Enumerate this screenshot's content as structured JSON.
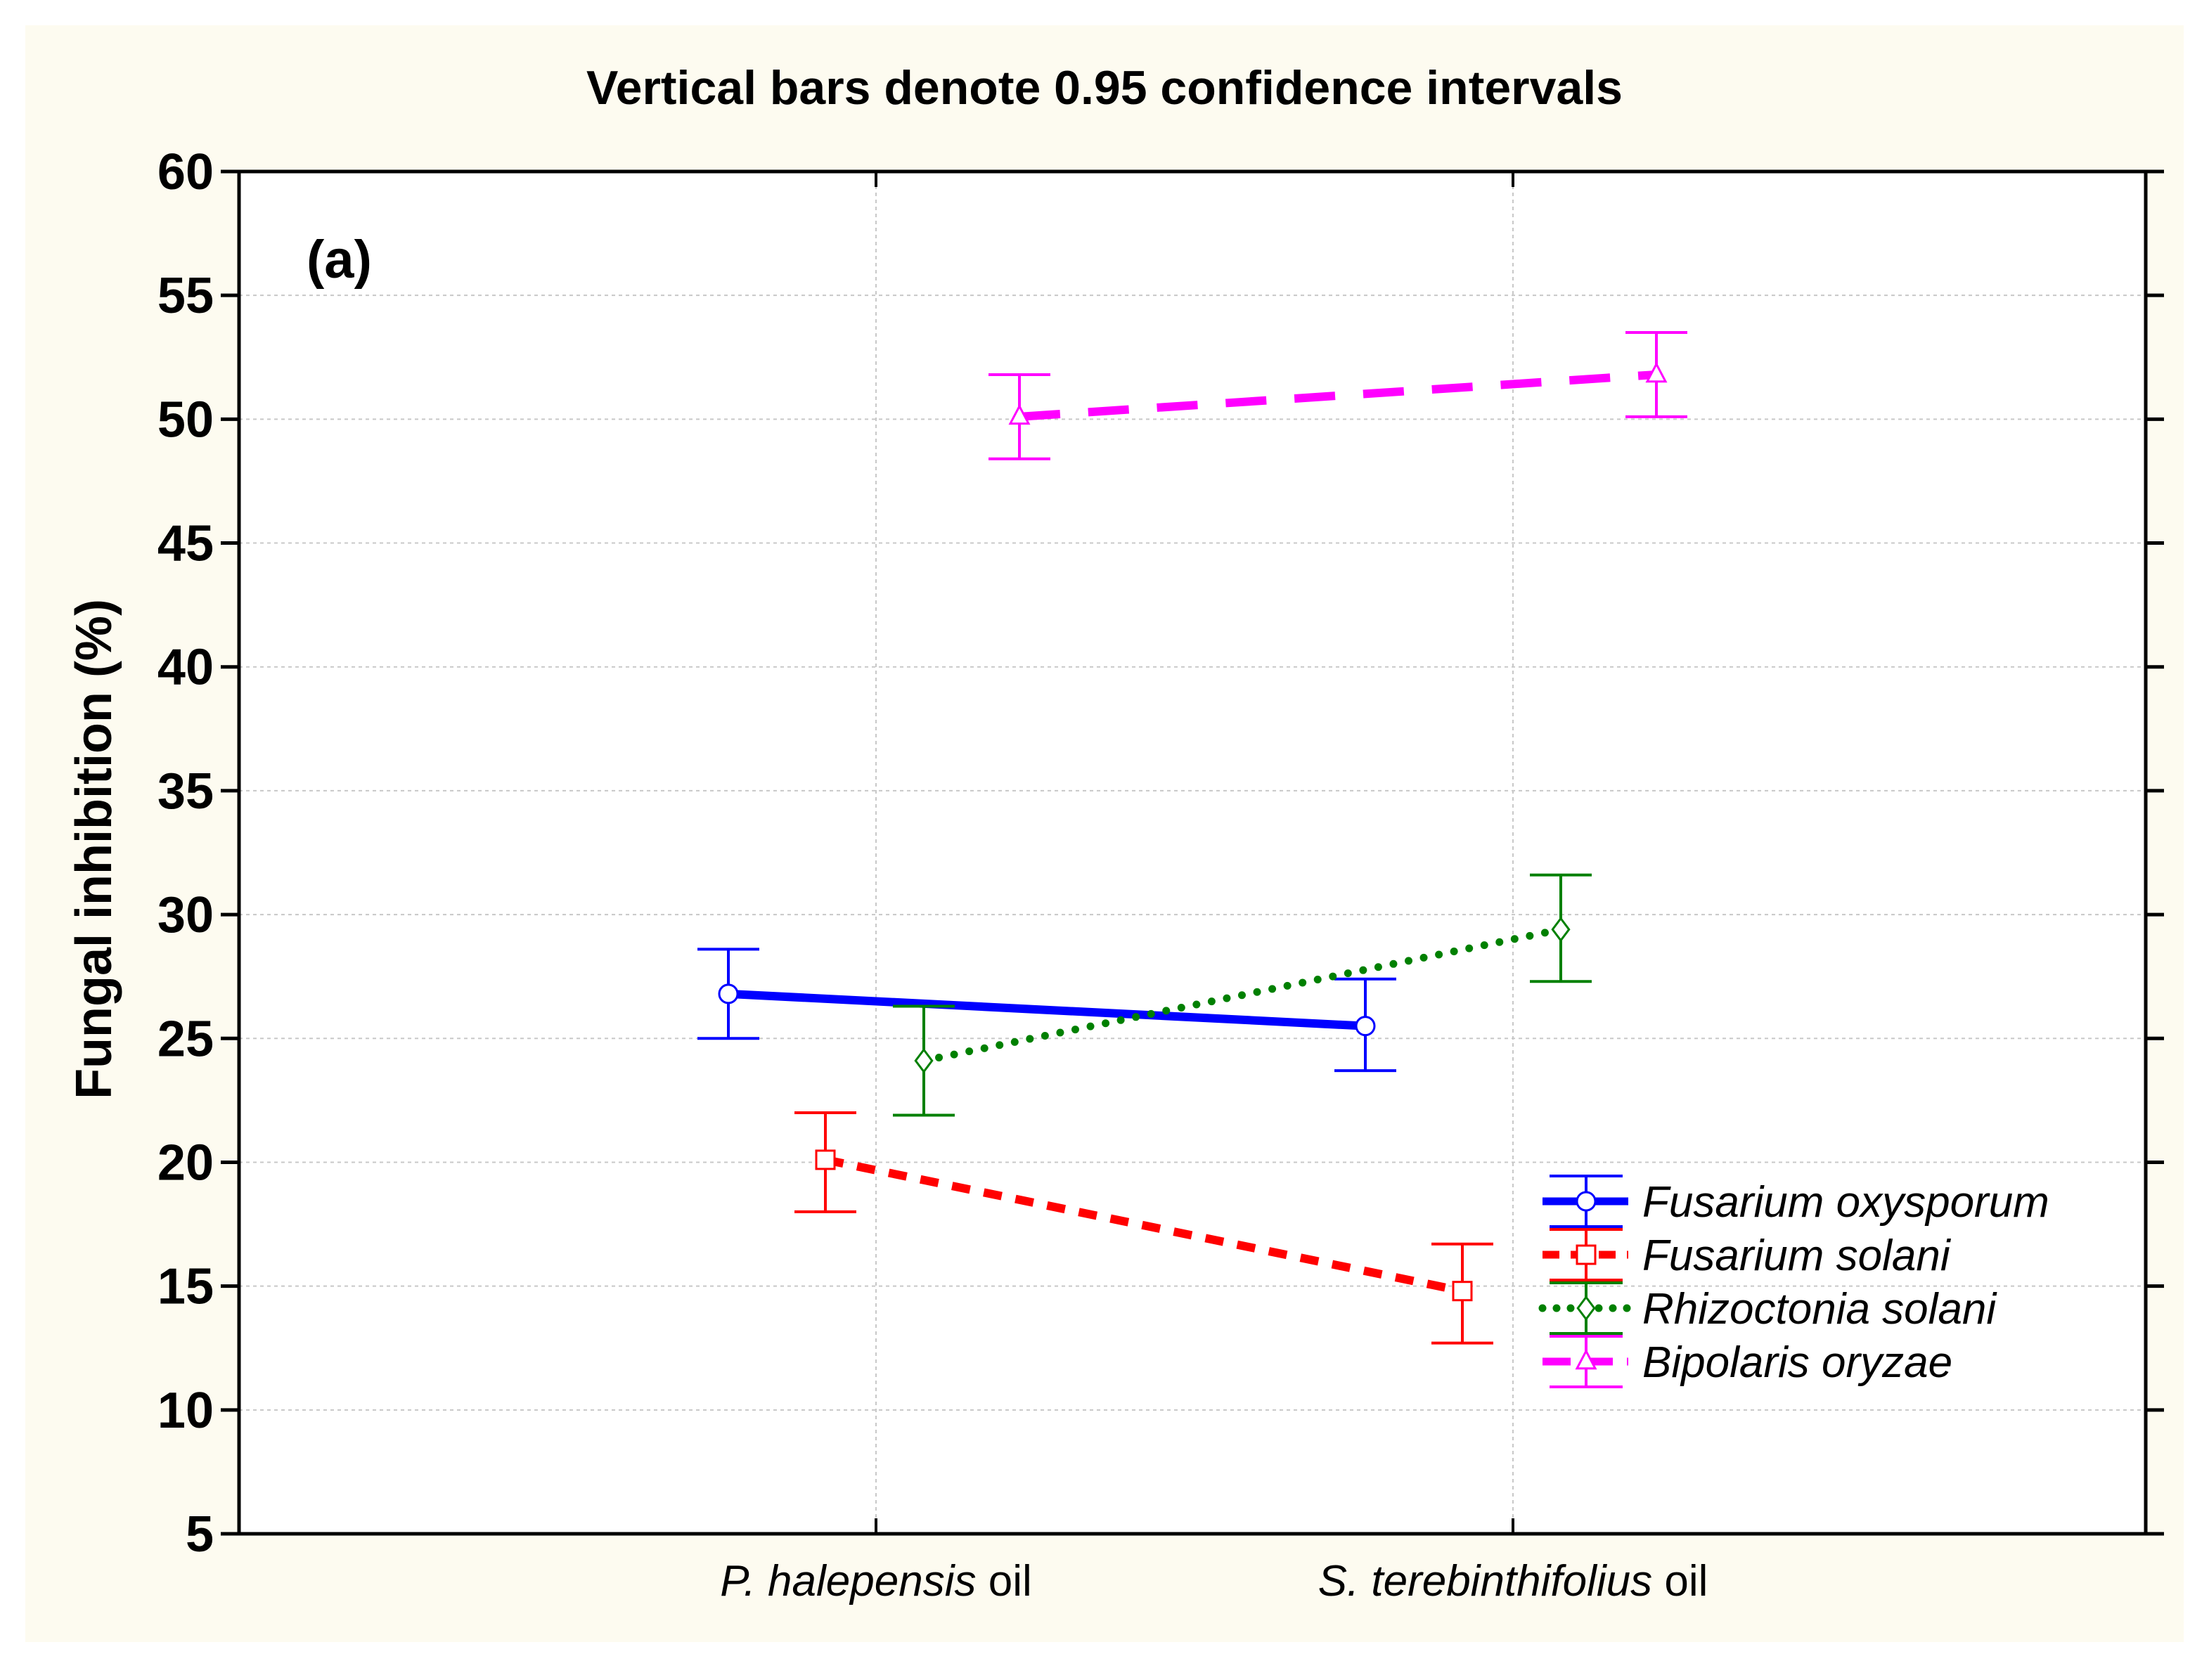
{
  "chart_data": {
    "type": "line",
    "title": "Vertical bars denote 0.95 confidence intervals",
    "panel_label": "(a)",
    "ylabel": "Fungal inhibition (%)",
    "xlabel": "",
    "ylim": [
      5,
      60
    ],
    "yticks": [
      5,
      10,
      15,
      20,
      25,
      30,
      35,
      40,
      45,
      50,
      55,
      60
    ],
    "grid": true,
    "legend_position": "bottom-right",
    "categories": [
      {
        "name": "P. halepensis",
        "suffix": " oil"
      },
      {
        "name": "S. terebinthifolius",
        "suffix": " oil"
      }
    ],
    "series": [
      {
        "name": "Fusarium oxysporum",
        "color": "#0000ff",
        "line": "solid",
        "marker": "circle",
        "values": [
          26.8,
          25.5
        ],
        "ci_low": [
          25.0,
          23.7
        ],
        "ci_high": [
          28.6,
          27.4
        ]
      },
      {
        "name": "Fusarium solani",
        "color": "#ff0000",
        "line": "dashed",
        "marker": "square",
        "values": [
          20.1,
          14.8
        ],
        "ci_low": [
          18.0,
          12.7
        ],
        "ci_high": [
          22.0,
          16.7
        ]
      },
      {
        "name": "Rhizoctonia solani",
        "color": "#008000",
        "line": "dotted",
        "marker": "diamond",
        "values": [
          24.1,
          29.4
        ],
        "ci_low": [
          21.9,
          27.3
        ],
        "ci_high": [
          26.3,
          31.6
        ]
      },
      {
        "name": "Bipolaris oryzae",
        "color": "#ff00ff",
        "line": "longdash",
        "marker": "triangle",
        "values": [
          50.1,
          51.8
        ],
        "ci_low": [
          48.4,
          50.1
        ],
        "ci_high": [
          51.8,
          53.5
        ]
      }
    ],
    "background_color": "#fdfbf0"
  }
}
